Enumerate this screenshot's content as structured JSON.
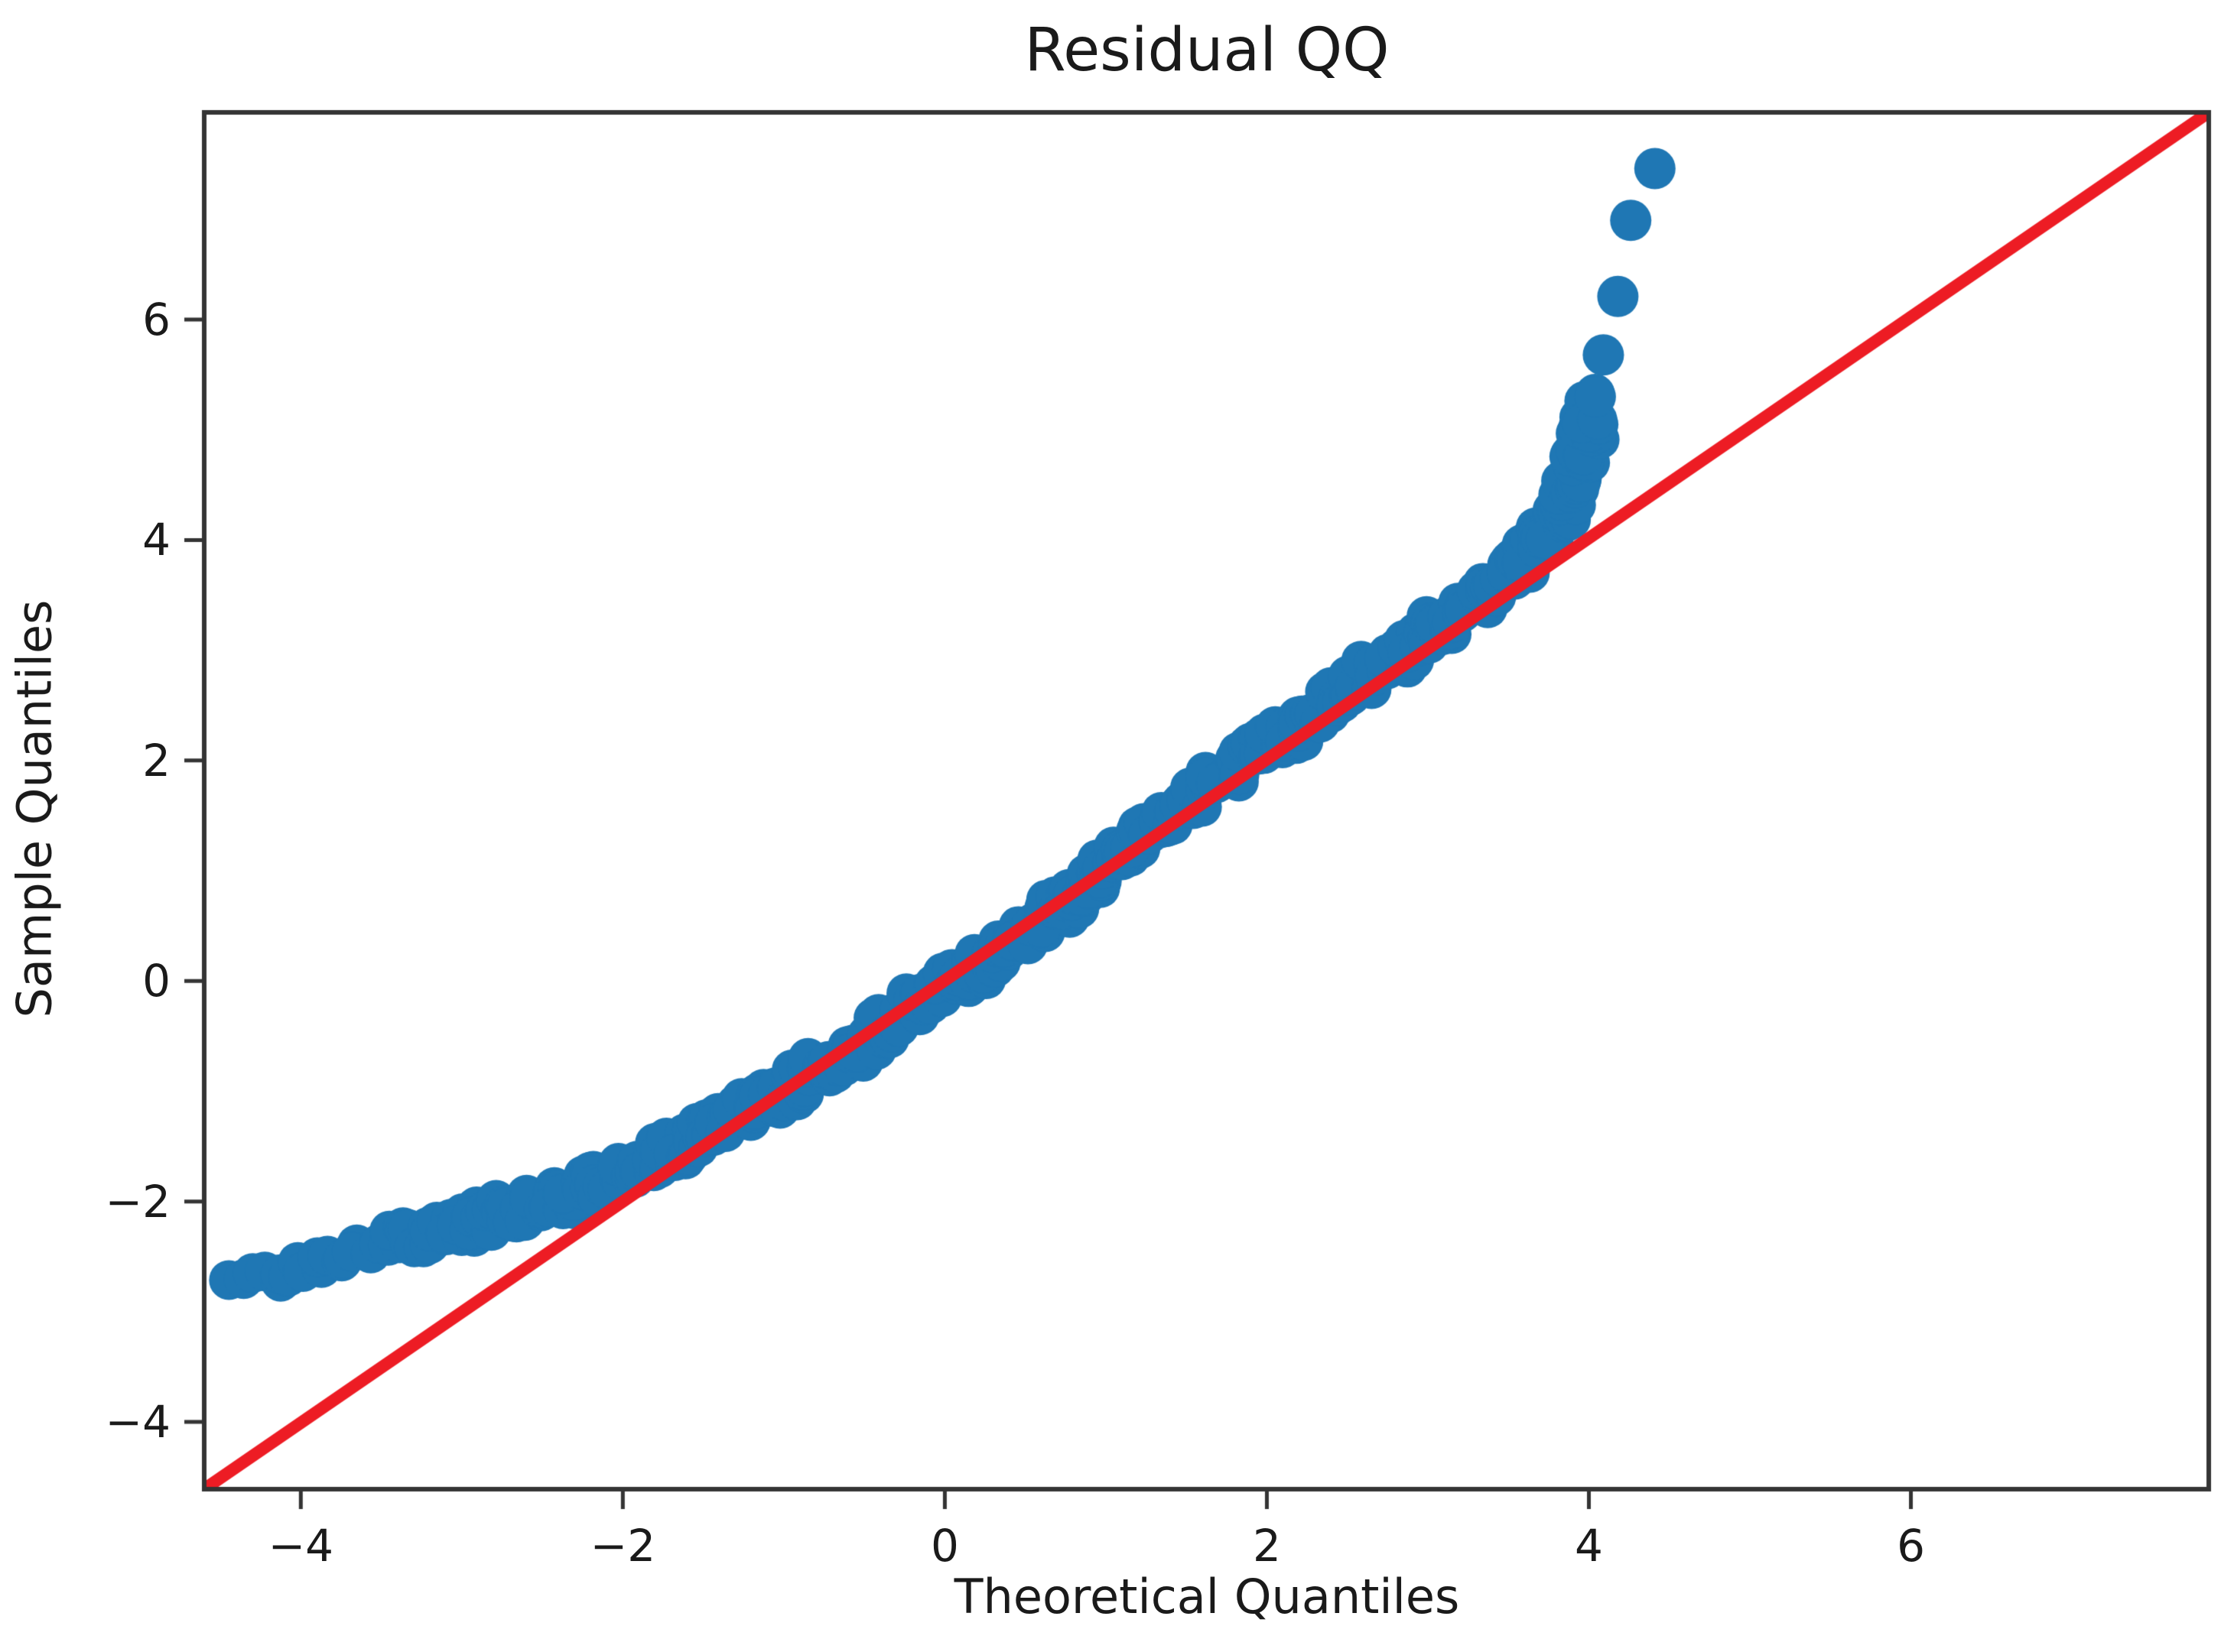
{
  "chart_data": {
    "type": "scatter",
    "title": "Residual QQ",
    "xlabel": "Theoretical Quantiles",
    "ylabel": "Sample Quantiles",
    "xlim": [
      -4.6,
      7.85
    ],
    "ylim": [
      -4.61,
      7.88
    ],
    "grid": false,
    "legend": "none",
    "x_ticks": {
      "values": [
        -4,
        -2,
        0,
        2,
        4,
        6
      ],
      "labels": [
        "−4",
        "−2",
        "0",
        "2",
        "4",
        "6"
      ]
    },
    "y_ticks": {
      "values": [
        -4,
        -2,
        0,
        2,
        4,
        6
      ],
      "labels": [
        "−4",
        "−2",
        "0",
        "2",
        "4",
        "6"
      ]
    },
    "colors": {
      "points": "#1f77b4",
      "reference_line": "#ed1c24",
      "axis": "#343434",
      "text": "#1a1a1a",
      "background": "#ffffff"
    },
    "reference_line": {
      "type": "identity",
      "equation": "y = x",
      "from": [
        -4.6,
        -4.61
      ],
      "to": [
        7.85,
        7.88
      ]
    },
    "series": [
      {
        "name": "sample-vs-theoretical-quantiles",
        "style": "dense-marker-band",
        "points": [
          [
            -4.43,
            -2.77
          ],
          [
            -4.15,
            -2.66
          ],
          [
            -3.9,
            -2.55
          ],
          [
            -3.65,
            -2.45
          ],
          [
            -3.4,
            -2.35
          ],
          [
            -3.15,
            -2.27
          ],
          [
            -2.9,
            -2.17
          ],
          [
            -2.65,
            -2.07
          ],
          [
            -2.4,
            -1.96
          ],
          [
            -2.15,
            -1.83
          ],
          [
            -1.9,
            -1.67
          ],
          [
            -1.65,
            -1.49
          ],
          [
            -1.4,
            -1.3
          ],
          [
            -1.15,
            -1.1
          ],
          [
            -0.9,
            -0.92
          ],
          [
            -0.65,
            -0.7
          ],
          [
            -0.4,
            -0.46
          ],
          [
            -0.15,
            -0.2
          ],
          [
            0.1,
            0.02
          ],
          [
            0.35,
            0.28
          ],
          [
            0.6,
            0.56
          ],
          [
            0.85,
            0.86
          ],
          [
            1.1,
            1.16
          ],
          [
            1.35,
            1.46
          ],
          [
            1.6,
            1.74
          ],
          [
            1.85,
            2.0
          ],
          [
            2.1,
            2.24
          ],
          [
            2.35,
            2.48
          ],
          [
            2.6,
            2.74
          ],
          [
            2.85,
            3.0
          ],
          [
            3.1,
            3.26
          ],
          [
            3.35,
            3.52
          ],
          [
            3.55,
            3.76
          ],
          [
            3.7,
            3.98
          ],
          [
            3.8,
            4.2
          ],
          [
            3.88,
            4.45
          ],
          [
            3.94,
            4.72
          ],
          [
            3.99,
            4.98
          ],
          [
            4.03,
            5.22
          ]
        ]
      },
      {
        "name": "upper-tail-outliers",
        "style": "individual-markers",
        "points": [
          [
            4.04,
            5.3
          ],
          [
            4.09,
            5.68
          ],
          [
            4.18,
            6.21
          ],
          [
            4.26,
            6.9
          ],
          [
            4.41,
            7.37
          ]
        ]
      }
    ]
  }
}
